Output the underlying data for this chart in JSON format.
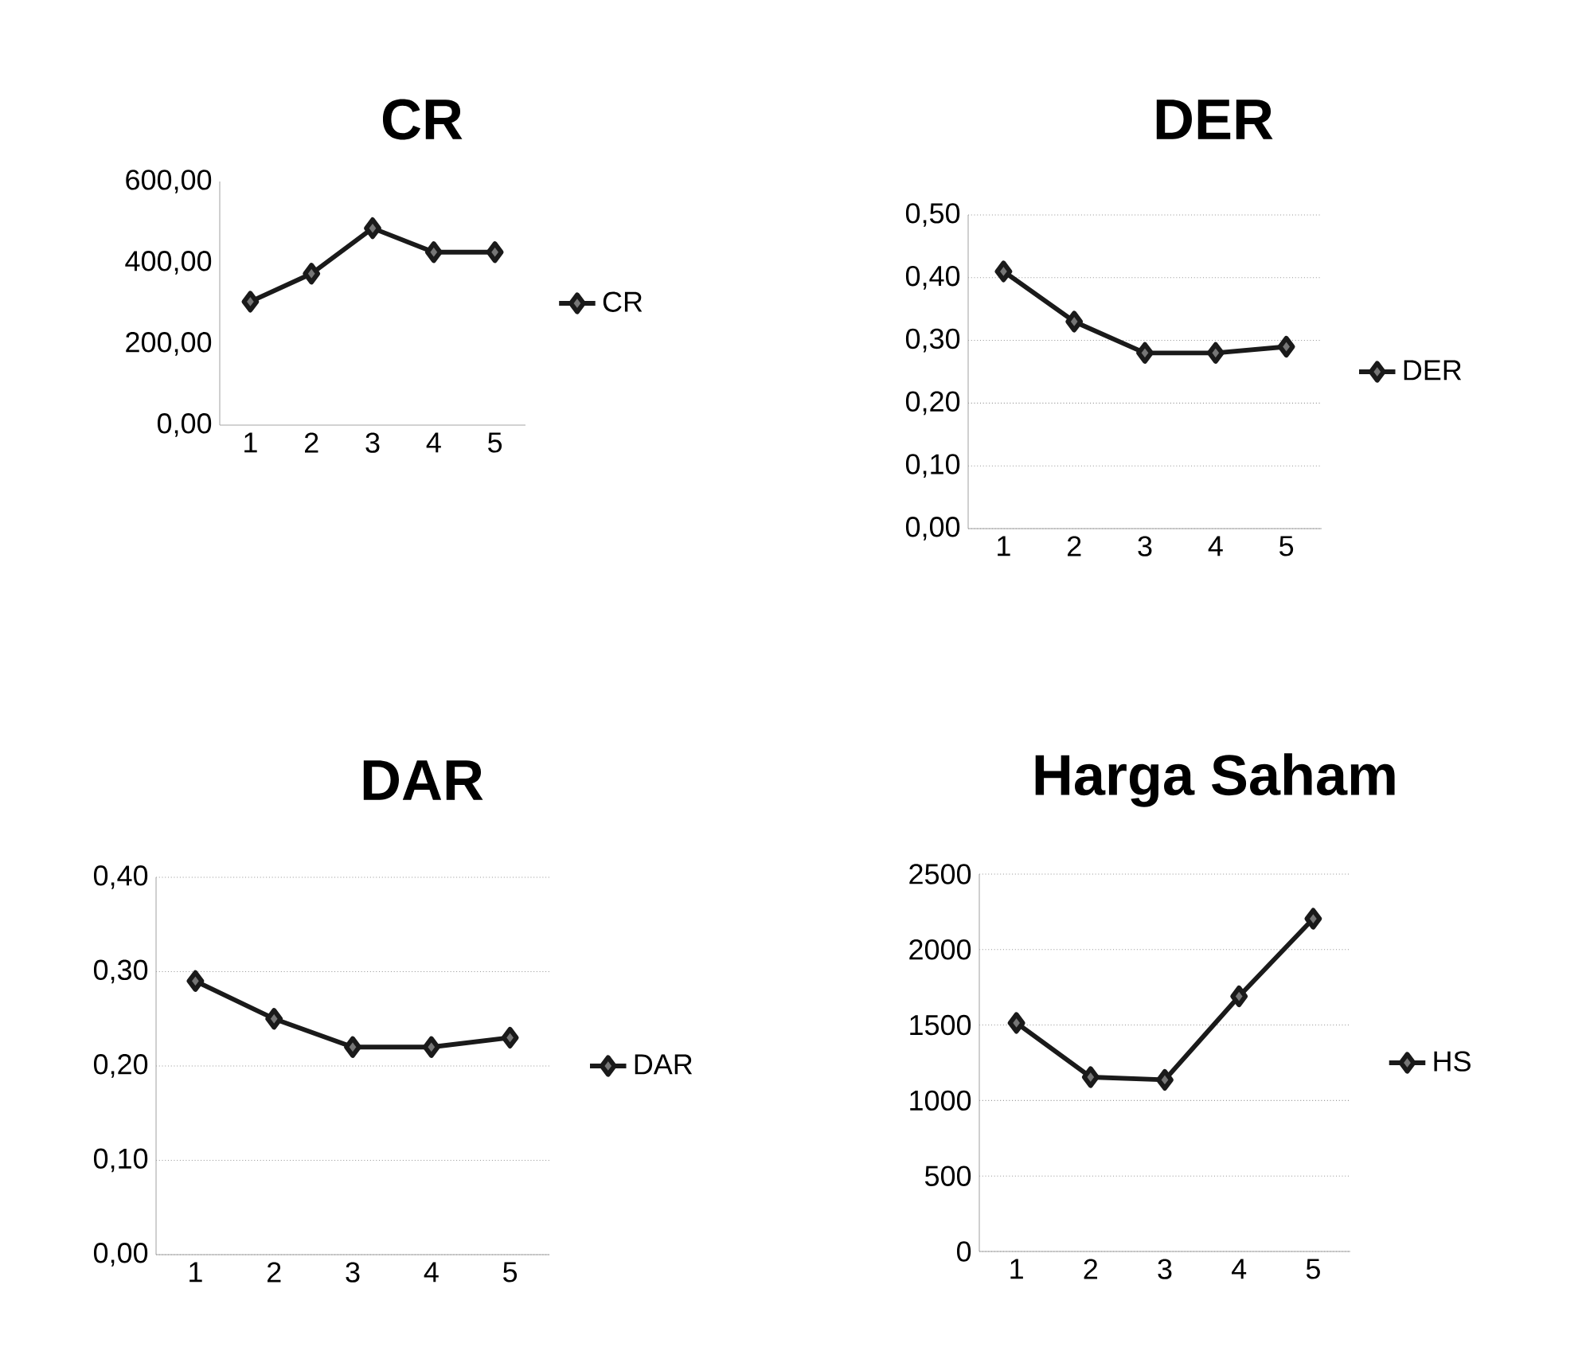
{
  "chart_data": [
    {
      "type": "line",
      "title": "CR",
      "categories": [
        "1",
        "2",
        "3",
        "4",
        "5"
      ],
      "series": [
        {
          "name": "CR",
          "color": "#1a1a1a",
          "values": [
            304,
            373,
            485,
            426,
            426
          ]
        }
      ],
      "ylim": [
        0,
        600
      ],
      "yticks": [
        {
          "value": 0,
          "label": "0,00"
        },
        {
          "value": 200,
          "label": "200,00"
        },
        {
          "value": 400,
          "label": "400,00"
        },
        {
          "value": 600,
          "label": "600,00"
        }
      ],
      "grid": false,
      "legend": "right",
      "marker": "diamond"
    },
    {
      "type": "line",
      "title": "DER",
      "categories": [
        "1",
        "2",
        "3",
        "4",
        "5"
      ],
      "series": [
        {
          "name": "DER",
          "color": "#1a1a1a",
          "values": [
            0.41,
            0.33,
            0.28,
            0.28,
            0.29
          ]
        }
      ],
      "ylim": [
        0,
        0.5
      ],
      "yticks": [
        {
          "value": 0,
          "label": "0,00"
        },
        {
          "value": 0.1,
          "label": "0,10"
        },
        {
          "value": 0.2,
          "label": "0,20"
        },
        {
          "value": 0.3,
          "label": "0,30"
        },
        {
          "value": 0.4,
          "label": "0,40"
        },
        {
          "value": 0.5,
          "label": "0,50"
        }
      ],
      "grid": "y",
      "legend": "right",
      "marker": "diamond"
    },
    {
      "type": "line",
      "title": "DAR",
      "categories": [
        "1",
        "2",
        "3",
        "4",
        "5"
      ],
      "series": [
        {
          "name": "DAR",
          "color": "#1a1a1a",
          "values": [
            0.29,
            0.25,
            0.22,
            0.22,
            0.23
          ]
        }
      ],
      "ylim": [
        0,
        0.4
      ],
      "yticks": [
        {
          "value": 0,
          "label": "0,00"
        },
        {
          "value": 0.1,
          "label": "0,10"
        },
        {
          "value": 0.2,
          "label": "0,20"
        },
        {
          "value": 0.3,
          "label": "0,30"
        },
        {
          "value": 0.4,
          "label": "0,40"
        }
      ],
      "grid": "y",
      "legend": "right",
      "marker": "diamond"
    },
    {
      "type": "line",
      "title": "Harga Saham",
      "categories": [
        "1",
        "2",
        "3",
        "4",
        "5"
      ],
      "series": [
        {
          "name": "HS",
          "color": "#1a1a1a",
          "values": [
            1514,
            1155,
            1137,
            1690,
            2204
          ]
        }
      ],
      "ylim": [
        0,
        2500
      ],
      "yticks": [
        0,
        500,
        1000,
        1500,
        2000,
        2500
      ],
      "grid": "y",
      "legend": "right",
      "marker": "diamond"
    }
  ]
}
